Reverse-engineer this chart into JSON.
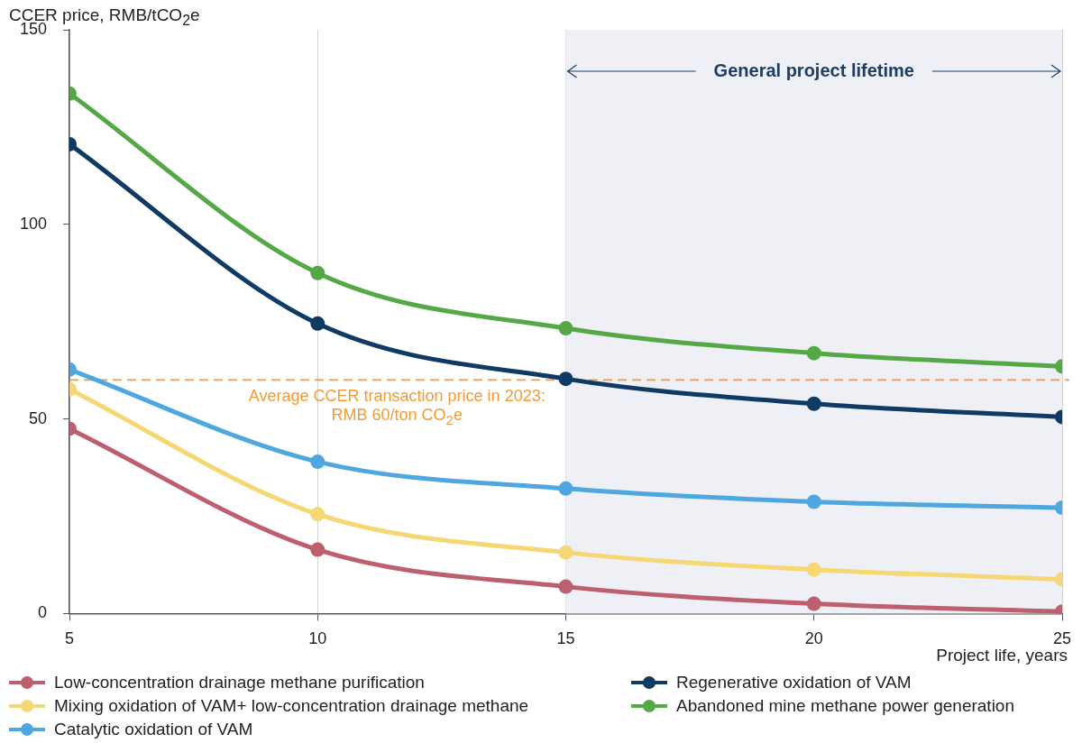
{
  "chart_data": {
    "type": "line",
    "ylabel": "CCER price, RMB/tCO$_{2}$e",
    "xlabel": "Project life, years",
    "x": [
      5,
      10,
      15,
      20,
      25
    ],
    "series": [
      {
        "name": "Low-concentration drainage methane purification",
        "color": "#bd5f6f",
        "values": [
          47.5,
          16.4,
          6.9,
          2.5,
          0.5
        ]
      },
      {
        "name": "Mixing oxidation of VAM+ low-concentration drainage methane",
        "color": "#f5d874",
        "values": [
          57.6,
          25.5,
          15.7,
          11.3,
          8.8
        ]
      },
      {
        "name": "Catalytic oxidation of VAM",
        "color": "#4ea8df",
        "values": [
          62.7,
          39.0,
          32.1,
          28.7,
          27.2
        ]
      },
      {
        "name": "Regenerative oxidation of VAM",
        "color": "#0f3a63",
        "values": [
          120.6,
          74.5,
          60.3,
          53.9,
          50.5
        ]
      },
      {
        "name": "Abandoned mine methane power generation",
        "color": "#55a846",
        "values": [
          133.6,
          87.5,
          73.3,
          66.9,
          63.5
        ]
      }
    ],
    "xlim": [
      5,
      25
    ],
    "xticks": [
      5,
      10,
      15,
      20,
      25
    ],
    "ylim": [
      0,
      150
    ],
    "yticks": [
      0,
      50,
      100,
      150
    ],
    "ref_lines": [
      {
        "axis": "y",
        "value": 60,
        "label": "Average CCER transaction price in 2023:\nRMB 60/ton CO$_{2}$e",
        "color": "#f39a3a",
        "line_style": "dashed"
      }
    ],
    "bands": [
      {
        "axis": "x",
        "from": 15,
        "to": 25,
        "label": "General project lifetime",
        "color": "#eef0f6"
      }
    ],
    "grid": "x",
    "legend": "bottom",
    "marker": "circle",
    "line_style": "solid"
  }
}
